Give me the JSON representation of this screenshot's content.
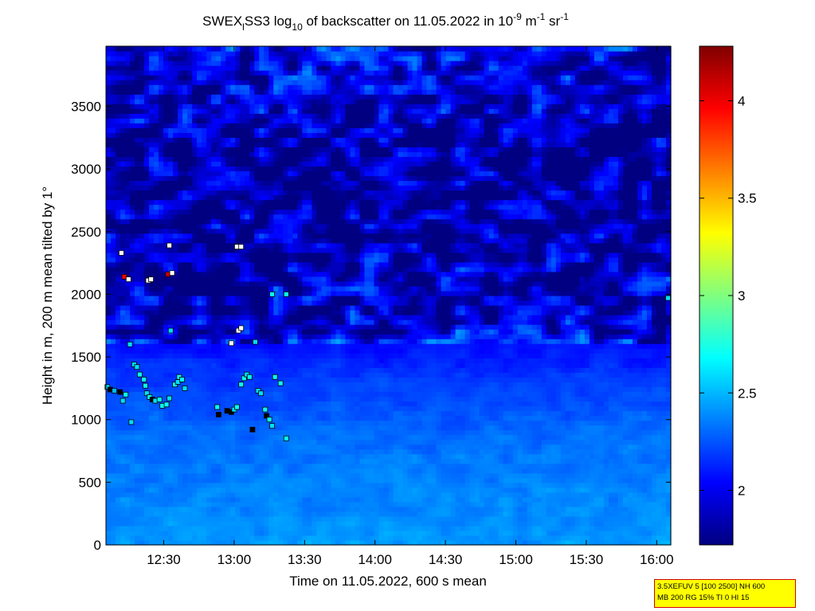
{
  "chart_data": [
    {
      "type": "heatmap",
      "title_parts": {
        "prefix": "SWEX",
        "sub_1": "l",
        "mid": "SS3 log",
        "sub_2": "10",
        "rest": " of backscatter on 11.05.2022 in 10",
        "sup_1": "-9",
        "unit_1": " m",
        "sup_2": "-1",
        "unit_2": " sr",
        "sup_3": "-1"
      },
      "xlabel": "Time on 11.05.2022, 600 s mean",
      "ylabel": "Height in m, 200 m mean tilted by 1°",
      "x_ticks": [
        "12:30",
        "13:00",
        "13:30",
        "14:00",
        "14:30",
        "15:00",
        "15:30",
        "16:00"
      ],
      "x_tick_hours": [
        12.5,
        13.0,
        13.5,
        14.0,
        14.5,
        15.0,
        15.5,
        16.0
      ],
      "xlim_hours": [
        12.09,
        16.1
      ],
      "y_ticks": [
        "0",
        "500",
        "1000",
        "1500",
        "2000",
        "2500",
        "3000",
        "3500"
      ],
      "y_tick_values": [
        0,
        500,
        1000,
        1500,
        2000,
        2500,
        3000,
        3500
      ],
      "ylim": [
        0,
        3980
      ],
      "colorbar": {
        "ticks": [
          "2",
          "2.5",
          "3",
          "3.5",
          "4"
        ],
        "tick_values": [
          2,
          2.5,
          3,
          3.5,
          4
        ],
        "range": [
          1.72,
          4.28
        ],
        "colormap": "jet"
      },
      "profile": {
        "description_heights_m": [
          0,
          300,
          800,
          1200,
          1500,
          1800,
          2200,
          2800,
          3300,
          3980
        ],
        "mean_log_backscatter": [
          2.42,
          2.38,
          2.32,
          2.22,
          2.1,
          1.97,
          1.88,
          1.82,
          1.86,
          2.05
        ]
      },
      "markers": [
        {
          "t": 12.1,
          "h": 1260,
          "v": 2.6
        },
        {
          "t": 12.12,
          "h": 1240,
          "v": 2.2
        },
        {
          "t": 12.15,
          "h": 1230,
          "v": 2.5
        },
        {
          "t": 12.19,
          "h": 1220,
          "v": 2.2
        },
        {
          "t": 12.21,
          "h": 1150,
          "v": 2.6
        },
        {
          "t": 12.23,
          "h": 1200,
          "v": 2.7
        },
        {
          "t": 12.2,
          "h": 2330,
          "v": 2.0
        },
        {
          "t": 12.22,
          "h": 2140,
          "v": 4.0
        },
        {
          "t": 12.25,
          "h": 2120,
          "v": 2.0
        },
        {
          "t": 12.26,
          "h": 1600,
          "v": 2.6
        },
        {
          "t": 12.27,
          "h": 980,
          "v": 2.6
        },
        {
          "t": 12.29,
          "h": 1440,
          "v": 2.6
        },
        {
          "t": 12.31,
          "h": 1420,
          "v": 2.6
        },
        {
          "t": 12.33,
          "h": 1360,
          "v": 2.7
        },
        {
          "t": 12.36,
          "h": 1320,
          "v": 2.7
        },
        {
          "t": 12.37,
          "h": 1270,
          "v": 2.7
        },
        {
          "t": 12.38,
          "h": 1210,
          "v": 2.6
        },
        {
          "t": 12.4,
          "h": 1180,
          "v": 2.7
        },
        {
          "t": 12.42,
          "h": 1160,
          "v": 2.2
        },
        {
          "t": 12.44,
          "h": 1150,
          "v": 2.6
        },
        {
          "t": 12.47,
          "h": 1160,
          "v": 2.7
        },
        {
          "t": 12.49,
          "h": 1110,
          "v": 2.7
        },
        {
          "t": 12.52,
          "h": 1120,
          "v": 2.7
        },
        {
          "t": 12.54,
          "h": 1170,
          "v": 2.6
        },
        {
          "t": 12.39,
          "h": 2110,
          "v": 2.0
        },
        {
          "t": 12.41,
          "h": 2120,
          "v": 2.0
        },
        {
          "t": 12.53,
          "h": 2160,
          "v": 4.1
        },
        {
          "t": 12.56,
          "h": 2170,
          "v": 2.0
        },
        {
          "t": 12.54,
          "h": 2390,
          "v": 2.0
        },
        {
          "t": 12.55,
          "h": 1710,
          "v": 2.6
        },
        {
          "t": 12.58,
          "h": 1280,
          "v": 2.7
        },
        {
          "t": 12.6,
          "h": 1300,
          "v": 2.6
        },
        {
          "t": 12.61,
          "h": 1340,
          "v": 2.7
        },
        {
          "t": 12.63,
          "h": 1320,
          "v": 2.7
        },
        {
          "t": 12.65,
          "h": 1250,
          "v": 2.6
        },
        {
          "t": 12.88,
          "h": 1100,
          "v": 2.7
        },
        {
          "t": 12.89,
          "h": 1040,
          "v": 2.2
        },
        {
          "t": 12.95,
          "h": 1070,
          "v": 2.2
        },
        {
          "t": 12.98,
          "h": 1060,
          "v": 2.2
        },
        {
          "t": 13.0,
          "h": 1080,
          "v": 2.6
        },
        {
          "t": 13.02,
          "h": 1100,
          "v": 2.7
        },
        {
          "t": 12.98,
          "h": 1610,
          "v": 2.0
        },
        {
          "t": 13.02,
          "h": 2380,
          "v": 2.0
        },
        {
          "t": 13.05,
          "h": 2380,
          "v": 2.0
        },
        {
          "t": 13.03,
          "h": 1710,
          "v": 2.0
        },
        {
          "t": 13.05,
          "h": 1730,
          "v": 2.0
        },
        {
          "t": 13.05,
          "h": 1280,
          "v": 2.7
        },
        {
          "t": 13.07,
          "h": 1330,
          "v": 2.7
        },
        {
          "t": 13.09,
          "h": 1360,
          "v": 2.6
        },
        {
          "t": 13.11,
          "h": 1340,
          "v": 2.7
        },
        {
          "t": 13.13,
          "h": 920,
          "v": 2.2
        },
        {
          "t": 13.15,
          "h": 1620,
          "v": 2.6
        },
        {
          "t": 13.17,
          "h": 1230,
          "v": 2.6
        },
        {
          "t": 13.19,
          "h": 1210,
          "v": 2.6
        },
        {
          "t": 13.22,
          "h": 1080,
          "v": 2.7
        },
        {
          "t": 13.23,
          "h": 1030,
          "v": 2.2
        },
        {
          "t": 13.25,
          "h": 1000,
          "v": 2.7
        },
        {
          "t": 13.27,
          "h": 950,
          "v": 2.6
        },
        {
          "t": 13.29,
          "h": 1340,
          "v": 2.7
        },
        {
          "t": 13.33,
          "h": 1290,
          "v": 2.7
        },
        {
          "t": 13.27,
          "h": 2000,
          "v": 2.7
        },
        {
          "t": 13.37,
          "h": 2000,
          "v": 2.7
        },
        {
          "t": 13.37,
          "h": 850,
          "v": 2.7
        },
        {
          "t": 16.08,
          "h": 1970,
          "v": 2.6
        }
      ]
    }
  ],
  "info_box": {
    "line_1": "3.5XEFUV 5 [100 2500] NH 600",
    "line_2": "MB 200 RG 15% TI 0 HI 15"
  }
}
